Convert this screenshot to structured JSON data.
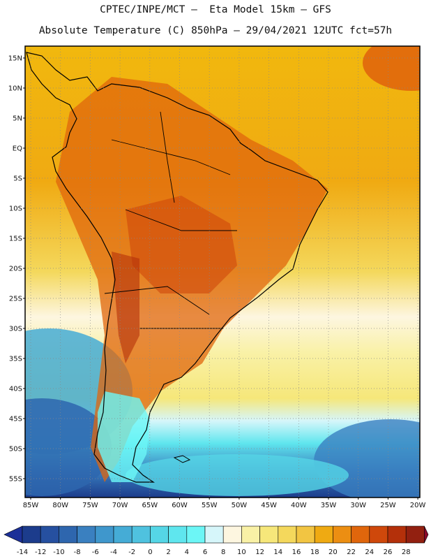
{
  "header": {
    "line1": "CPTEC/INPE/MCT –  Eta Model 15km – GFS",
    "line2": "Absolute Temperature (C) 850hPa – 29/04/2021 12UTC fct=57h"
  },
  "map": {
    "lat_labels": [
      "15N",
      "10N",
      "5N",
      "EQ",
      "5S",
      "10S",
      "15S",
      "20S",
      "25S",
      "30S",
      "35S",
      "40S",
      "45S",
      "50S",
      "55S"
    ],
    "lon_labels": [
      "85W",
      "80W",
      "75W",
      "70W",
      "65W",
      "60W",
      "55W",
      "50W",
      "45W",
      "40W",
      "35W",
      "30W",
      "25W",
      "20W"
    ]
  },
  "legend": {
    "labels": [
      "-14",
      "-12",
      "-10",
      "-8",
      "-6",
      "-4",
      "-2",
      "0",
      "2",
      "4",
      "6",
      "8",
      "10",
      "12",
      "14",
      "16",
      "18",
      "20",
      "22",
      "24",
      "26",
      "28"
    ],
    "colors": [
      "#1c3c8c",
      "#2650a0",
      "#2e66ae",
      "#3a80c0",
      "#3f97cc",
      "#45acd6",
      "#4fc2df",
      "#55d6e6",
      "#5fe6ee",
      "#6cf6f6",
      "#d6f6fa",
      "#fdf6e0",
      "#f9f1a6",
      "#f6e77a",
      "#f4d85c",
      "#f2c542",
      "#efaa12",
      "#ec8e12",
      "#e0660c",
      "#cf480b",
      "#b4300a",
      "#922010"
    ],
    "underflow_color": "#1c3098",
    "overflow_color": "#8a0828"
  }
}
